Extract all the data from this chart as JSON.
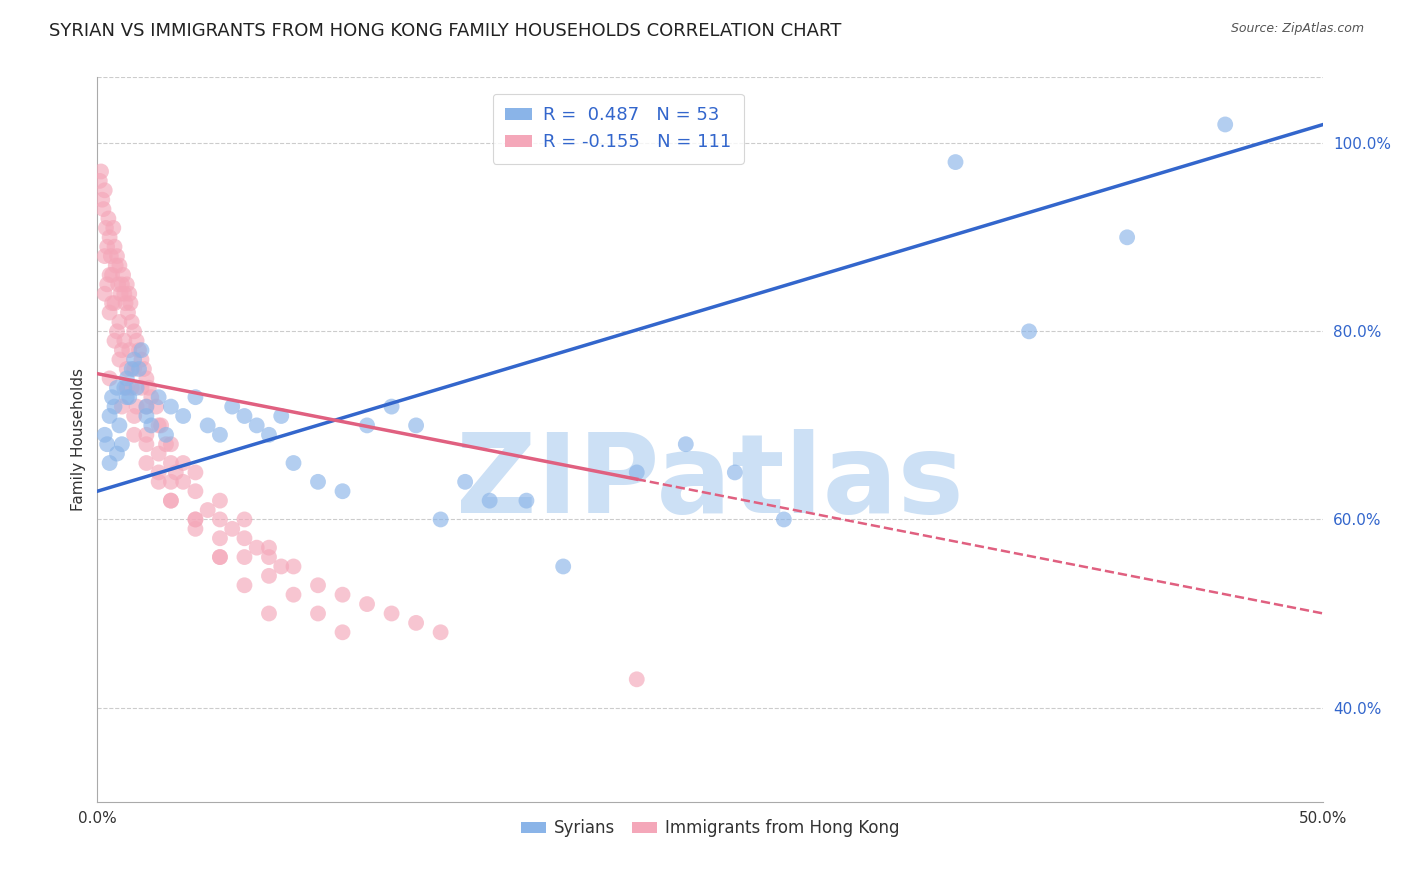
{
  "title": "SYRIAN VS IMMIGRANTS FROM HONG KONG FAMILY HOUSEHOLDS CORRELATION CHART",
  "source": "Source: ZipAtlas.com",
  "ylabel": "Family Households",
  "xlim": [
    0.0,
    50.0
  ],
  "ylim": [
    30.0,
    107.0
  ],
  "yticks": [
    40.0,
    60.0,
    80.0,
    100.0
  ],
  "ytick_labels": [
    "40.0%",
    "60.0%",
    "80.0%",
    "100.0%"
  ],
  "xticks": [
    0.0,
    10.0,
    20.0,
    30.0,
    40.0,
    50.0
  ],
  "xtick_labels": [
    "0.0%",
    "",
    "",
    "",
    "",
    "50.0%"
  ],
  "legend_labels": [
    "Syrians",
    "Immigrants from Hong Kong"
  ],
  "blue_R": 0.487,
  "blue_N": 53,
  "pink_R": -0.155,
  "pink_N": 111,
  "blue_color": "#8ab4e8",
  "pink_color": "#f4a7b9",
  "blue_line_color": "#3366cc",
  "pink_line_color": "#e06080",
  "watermark_text": "ZIPatlas",
  "watermark_color": "#cce0f5",
  "background_color": "#ffffff",
  "grid_color": "#cccccc",
  "title_fontsize": 13,
  "axis_label_fontsize": 11,
  "tick_fontsize": 11,
  "blue_line_x0": 0.0,
  "blue_line_y0": 63.0,
  "blue_line_x1": 50.0,
  "blue_line_y1": 102.0,
  "pink_line_x0": 0.0,
  "pink_line_y0": 75.5,
  "pink_line_x1": 50.0,
  "pink_line_y1": 50.0,
  "pink_solid_end_x": 22.0,
  "blue_scatter_x": [
    0.3,
    0.4,
    0.5,
    0.6,
    0.7,
    0.8,
    0.9,
    1.0,
    1.1,
    1.2,
    1.3,
    1.4,
    1.5,
    1.6,
    1.7,
    1.8,
    2.0,
    2.2,
    2.5,
    2.8,
    3.0,
    3.5,
    4.0,
    4.5,
    5.0,
    5.5,
    6.0,
    6.5,
    7.0,
    7.5,
    8.0,
    9.0,
    10.0,
    11.0,
    12.0,
    13.0,
    14.0,
    15.0,
    16.0,
    17.5,
    19.0,
    22.0,
    24.0,
    26.0,
    28.0,
    35.0,
    38.0,
    42.0,
    46.0,
    0.5,
    0.8,
    1.2,
    2.0
  ],
  "blue_scatter_y": [
    69,
    68,
    71,
    73,
    72,
    74,
    70,
    68,
    74,
    75,
    73,
    76,
    77,
    74,
    76,
    78,
    72,
    70,
    73,
    69,
    72,
    71,
    73,
    70,
    69,
    72,
    71,
    70,
    69,
    71,
    66,
    64,
    63,
    70,
    72,
    70,
    60,
    64,
    62,
    62,
    55,
    65,
    68,
    65,
    60,
    98,
    80,
    90,
    102,
    66,
    67,
    73,
    71
  ],
  "pink_scatter_x": [
    0.1,
    0.15,
    0.2,
    0.25,
    0.3,
    0.35,
    0.4,
    0.45,
    0.5,
    0.55,
    0.6,
    0.65,
    0.7,
    0.75,
    0.8,
    0.85,
    0.9,
    0.95,
    1.0,
    1.05,
    1.1,
    1.15,
    1.2,
    1.25,
    1.3,
    1.35,
    1.4,
    1.5,
    1.6,
    1.7,
    1.8,
    1.9,
    2.0,
    2.1,
    2.2,
    2.4,
    2.6,
    2.8,
    3.0,
    3.2,
    3.5,
    4.0,
    4.5,
    5.0,
    5.5,
    6.0,
    6.5,
    7.0,
    7.5,
    0.3,
    0.5,
    0.7,
    0.9,
    1.1,
    1.3,
    1.5,
    1.8,
    2.0,
    2.5,
    3.0,
    3.5,
    4.0,
    5.0,
    6.0,
    7.0,
    8.0,
    9.0,
    10.0,
    11.0,
    12.0,
    13.0,
    14.0,
    0.4,
    0.6,
    0.8,
    1.0,
    1.2,
    1.4,
    1.6,
    2.0,
    2.5,
    3.0,
    4.0,
    5.0,
    0.3,
    0.5,
    0.7,
    0.9,
    1.2,
    1.5,
    2.0,
    2.5,
    3.0,
    4.0,
    5.0,
    6.0,
    7.0,
    0.5,
    1.0,
    1.5,
    2.0,
    2.5,
    3.0,
    4.0,
    5.0,
    6.0,
    7.0,
    8.0,
    9.0,
    10.0,
    22.0
  ],
  "pink_scatter_y": [
    96,
    97,
    94,
    93,
    95,
    91,
    89,
    92,
    90,
    88,
    86,
    91,
    89,
    87,
    88,
    85,
    87,
    84,
    85,
    86,
    84,
    83,
    85,
    82,
    84,
    83,
    81,
    80,
    79,
    78,
    77,
    76,
    75,
    74,
    73,
    72,
    70,
    68,
    66,
    65,
    64,
    63,
    61,
    60,
    59,
    58,
    57,
    56,
    55,
    88,
    86,
    83,
    81,
    79,
    78,
    76,
    74,
    72,
    70,
    68,
    66,
    65,
    62,
    60,
    57,
    55,
    53,
    52,
    51,
    50,
    49,
    48,
    85,
    83,
    80,
    78,
    76,
    74,
    72,
    69,
    67,
    64,
    60,
    56,
    84,
    82,
    79,
    77,
    74,
    71,
    68,
    65,
    62,
    59,
    56,
    53,
    50,
    75,
    72,
    69,
    66,
    64,
    62,
    60,
    58,
    56,
    54,
    52,
    50,
    48,
    43
  ]
}
